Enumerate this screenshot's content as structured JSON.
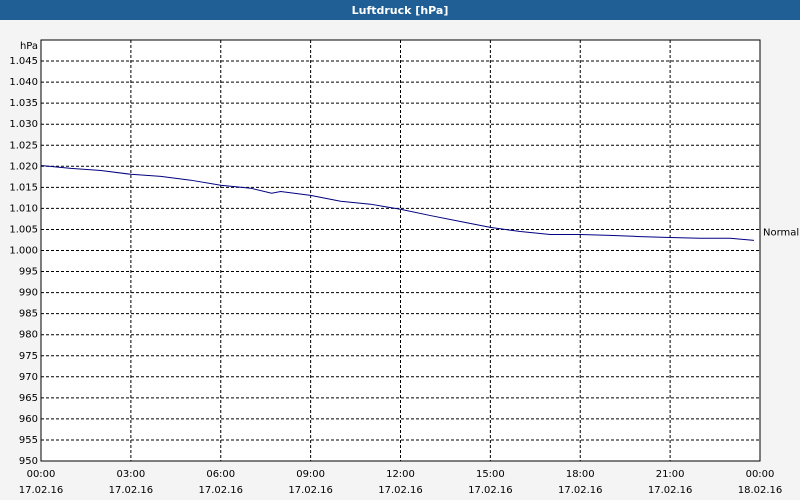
{
  "window_title": "Luftdruck [hPa]",
  "chart_data": {
    "type": "line",
    "y_label": "hPa",
    "x": [
      0,
      1,
      2,
      3,
      4,
      5,
      6,
      7,
      7.7,
      8,
      9,
      10,
      11,
      12,
      13,
      14,
      15,
      16,
      17,
      18,
      19,
      20,
      21,
      22,
      23,
      23.8
    ],
    "series": [
      {
        "name": "Normal",
        "color": "#000080",
        "values": [
          1020.2,
          1019.5,
          1019.0,
          1018.1,
          1017.6,
          1016.7,
          1015.5,
          1014.8,
          1013.6,
          1014.0,
          1013.1,
          1011.7,
          1011.0,
          1009.8,
          1008.3,
          1006.9,
          1005.5,
          1004.5,
          1003.8,
          1003.8,
          1003.6,
          1003.3,
          1003.1,
          1002.9,
          1002.9,
          1002.4
        ]
      }
    ],
    "xlim": [
      0,
      24
    ],
    "xticks": [
      {
        "value": 0,
        "label": "00:00",
        "date": "17.02.16"
      },
      {
        "value": 3,
        "label": "03:00",
        "date": "17.02.16"
      },
      {
        "value": 6,
        "label": "06:00",
        "date": "17.02.16"
      },
      {
        "value": 9,
        "label": "09:00",
        "date": "17.02.16"
      },
      {
        "value": 12,
        "label": "12:00",
        "date": "17.02.16"
      },
      {
        "value": 15,
        "label": "15:00",
        "date": "17.02.16"
      },
      {
        "value": 18,
        "label": "18:00",
        "date": "17.02.16"
      },
      {
        "value": 21,
        "label": "21:00",
        "date": "17.02.16"
      },
      {
        "value": 24,
        "label": "00:00",
        "date": "18.02.16"
      }
    ],
    "ylim": [
      950,
      1050
    ],
    "yticks": [
      950,
      955,
      960,
      965,
      970,
      975,
      980,
      985,
      990,
      995,
      {
        "value": 1000,
        "label": "1.000"
      },
      {
        "value": 1005,
        "label": "1.005"
      },
      {
        "value": 1010,
        "label": "1.010"
      },
      {
        "value": 1015,
        "label": "1.015"
      },
      {
        "value": 1020,
        "label": "1.020"
      },
      {
        "value": 1025,
        "label": "1.025"
      },
      {
        "value": 1030,
        "label": "1.030"
      },
      {
        "value": 1035,
        "label": "1.035"
      },
      {
        "value": 1040,
        "label": "1.040"
      },
      {
        "value": 1045,
        "label": "1.045"
      }
    ],
    "grid": true
  }
}
